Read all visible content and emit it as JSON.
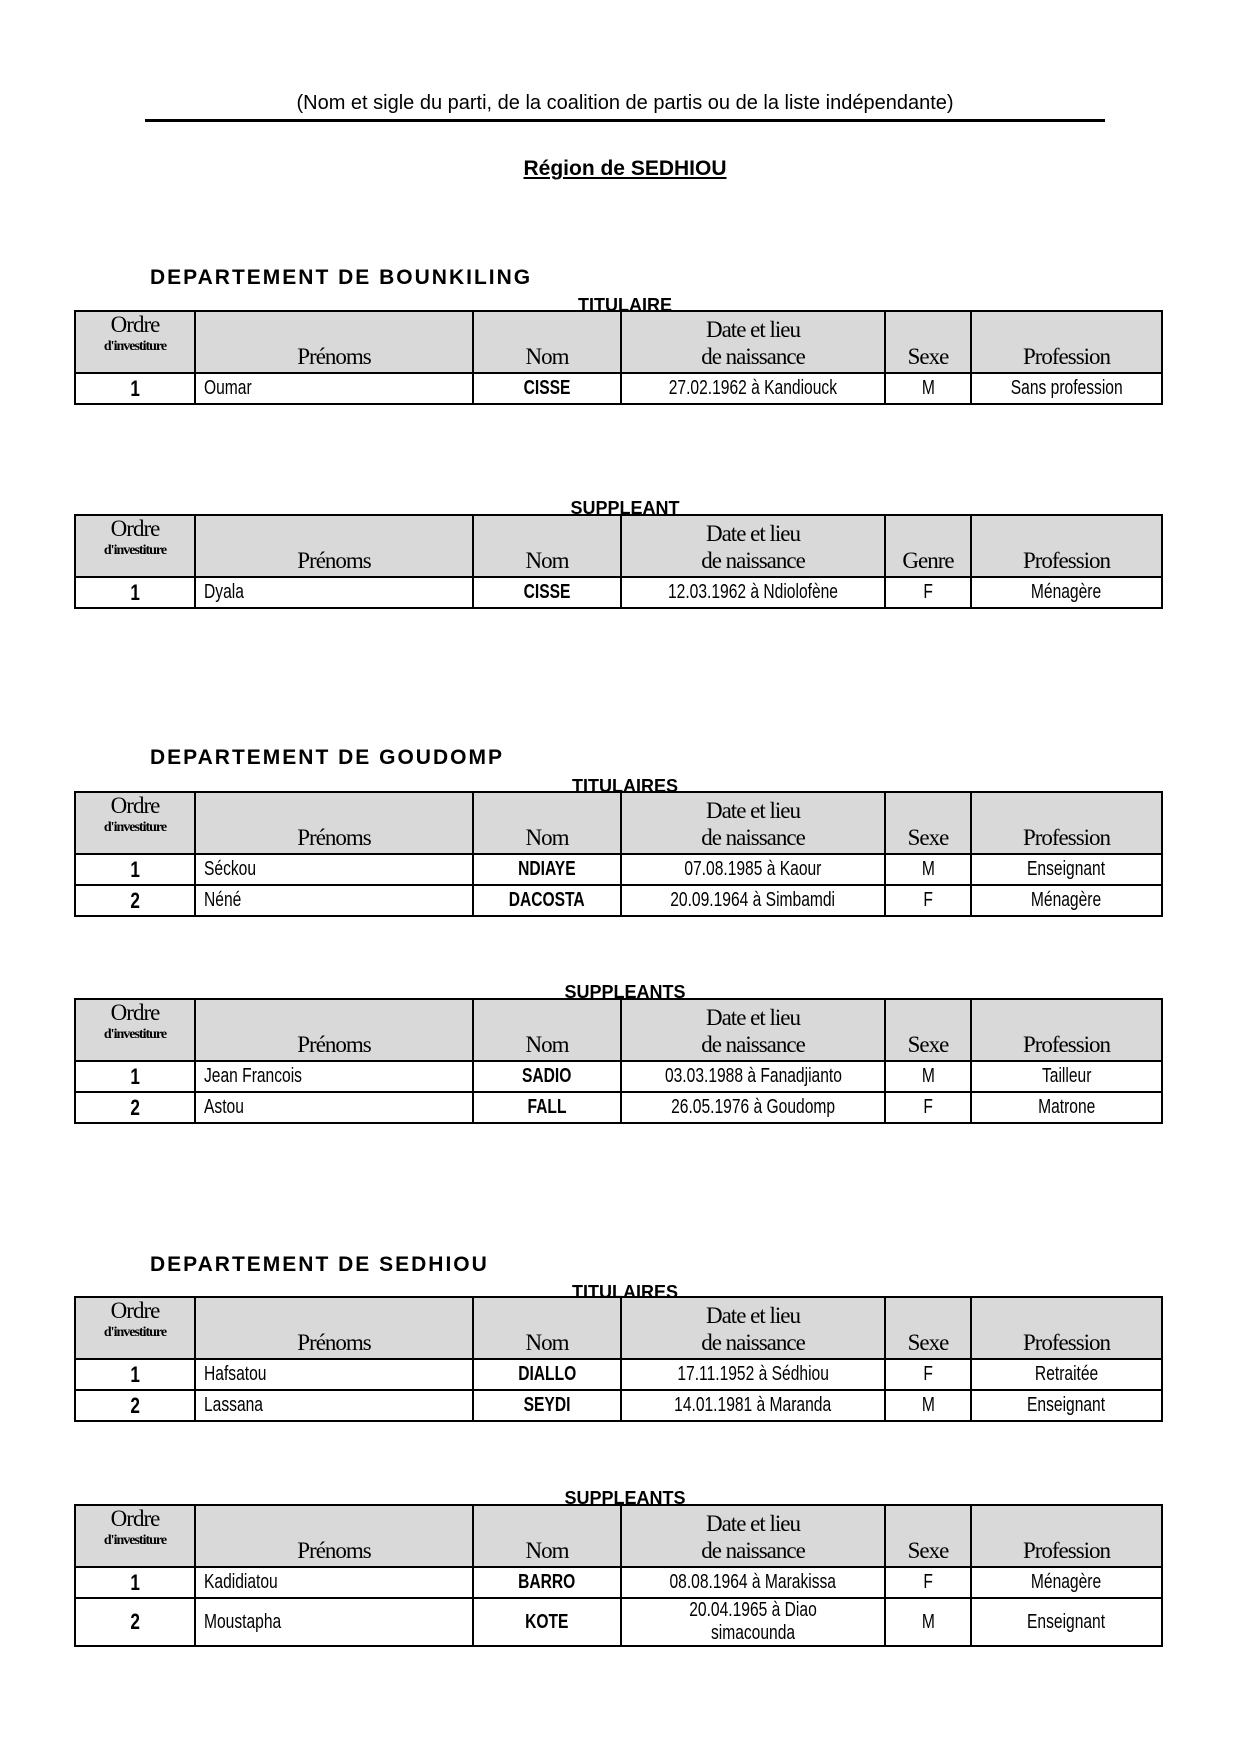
{
  "header": {
    "subtitle": "(Nom et sigle du parti, de la coalition de partis ou de la liste indépendante)",
    "region": "Région  de  SEDHIOU"
  },
  "columns": {
    "ordre": "Ordre",
    "ordre_sub": "d'investiture",
    "prenoms": "Prénoms",
    "nom": "Nom",
    "date_line1": "Date et lieu",
    "date_line2": "de naissance",
    "sexe": "Sexe",
    "genre": "Genre",
    "profession": "Profession"
  },
  "departments": [
    {
      "title": "DEPARTEMENT  DE  BOUNKILING",
      "titulaires_label": "TITULAIRE",
      "titulaires": [
        {
          "ordre": "1",
          "prenoms": "Oumar",
          "nom": "CISSE",
          "date_lieu": "27.02.1962 à Kandiouck",
          "sexe": "M",
          "profession": "Sans profession"
        }
      ],
      "suppleants_label": "SUPPLEANT",
      "suppleants": [
        {
          "ordre": "1",
          "prenoms": "Dyala",
          "nom": "CISSE",
          "date_lieu": "12.03.1962 à Ndiolofène",
          "sexe": "F",
          "profession": "Ménagère"
        }
      ]
    },
    {
      "title": "DEPARTEMENT  DE  GOUDOMP",
      "titulaires_label": "TITULAIRES",
      "titulaires": [
        {
          "ordre": "1",
          "prenoms": "Séckou",
          "nom": "NDIAYE",
          "date_lieu": "07.08.1985 à Kaour",
          "sexe": "M",
          "profession": "Enseignant"
        },
        {
          "ordre": "2",
          "prenoms": "Néné",
          "nom": "DACOSTA",
          "date_lieu": "20.09.1964 à Simbamdi",
          "sexe": "F",
          "profession": "Ménagère"
        }
      ],
      "suppleants_label": "SUPPLEANTS",
      "suppleants": [
        {
          "ordre": "1",
          "prenoms": "Jean Francois",
          "nom": "SADIO",
          "date_lieu": "03.03.1988 à Fanadjianto",
          "sexe": "M",
          "profession": "Tailleur"
        },
        {
          "ordre": "2",
          "prenoms": "Astou",
          "nom": "FALL",
          "date_lieu": "26.05.1976 à Goudomp",
          "sexe": "F",
          "profession": "Matrone"
        }
      ]
    },
    {
      "title": "DEPARTEMENT  DE  SEDHIOU",
      "titulaires_label": "TITULAIRES",
      "titulaires": [
        {
          "ordre": "1",
          "prenoms": "Hafsatou",
          "nom": "DIALLO",
          "date_lieu": "17.11.1952 à Sédhiou",
          "sexe": "F",
          "profession": "Retraitée"
        },
        {
          "ordre": "2",
          "prenoms": "Lassana",
          "nom": "SEYDI",
          "date_lieu": "14.01.1981 à Maranda",
          "sexe": "M",
          "profession": "Enseignant"
        }
      ],
      "suppleants_label": "SUPPLEANTS",
      "suppleants": [
        {
          "ordre": "1",
          "prenoms": "Kadidiatou",
          "nom": "BARRO",
          "date_lieu": "08.08.1964 à Marakissa",
          "sexe": "F",
          "profession": "Ménagère"
        },
        {
          "ordre": "2",
          "prenoms": "Moustapha",
          "nom": "KOTE",
          "date_lieu": "20.04.1965 à Diao simacounda",
          "sexe": "M",
          "profession": "Enseignant"
        }
      ]
    }
  ]
}
